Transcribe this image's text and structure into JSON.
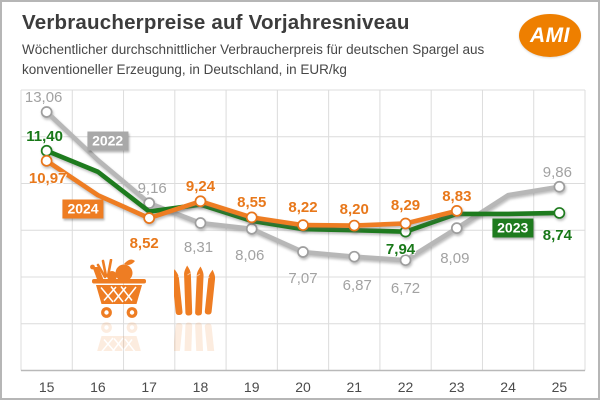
{
  "header": {
    "title": "Verbraucherpreise auf Vorjahresniveau",
    "subtitle": "Wöchentlicher durchschnittlicher Verbraucherpreis für deutschen Spargel aus konventioneller Erzeugung, in Deutschland, in EUR/kg",
    "logo_text": "AMI"
  },
  "colors": {
    "orange": "#ee7d23",
    "green": "#1e7b1e",
    "gray_line": "#b7b7b7",
    "gray_label": "#a2a2a2",
    "grid": "#dcdcdc",
    "axis": "#b9b9b9",
    "tick_text": "#4b4b4b",
    "logo_orange": "#ee7f00"
  },
  "icons": [
    {
      "name": "shopping-cart-icon"
    },
    {
      "name": "asparagus-icon"
    }
  ],
  "chart_data": {
    "type": "line",
    "title": "Verbraucherpreise auf Vorjahresniveau",
    "unit": "EUR/kg",
    "categories": [
      15,
      16,
      17,
      18,
      19,
      20,
      21,
      22,
      23,
      24,
      25
    ],
    "ylim": [
      2,
      14
    ],
    "grid_step": 2,
    "grid": true,
    "y_axis_labels_visible": false,
    "series": [
      {
        "name": "2022",
        "color": "#b7b7b7",
        "marker_stroke": "#9e9e9e",
        "label_color": "#a2a2a2",
        "label_bold": false,
        "values": [
          13.06,
          11.0,
          9.16,
          8.31,
          8.06,
          7.07,
          6.87,
          6.72,
          8.09,
          9.5,
          9.86
        ],
        "estimated_weeks": [
          16,
          24
        ],
        "marker_weeks": [
          15,
          17,
          18,
          19,
          20,
          21,
          22,
          23,
          25
        ],
        "point_labels": [
          {
            "week": 15,
            "text": "13,06",
            "pos": "above",
            "dx": -3
          },
          {
            "week": 17,
            "text": "9,16",
            "pos": "above",
            "dx": 3
          },
          {
            "week": 18,
            "text": "8,31",
            "pos": "below",
            "dy": 4,
            "dx": -2
          },
          {
            "week": 19,
            "text": "8,06",
            "pos": "below",
            "dy": 6,
            "dx": -2
          },
          {
            "week": 20,
            "text": "7,07",
            "pos": "below",
            "dy": 6
          },
          {
            "week": 21,
            "text": "6,87",
            "pos": "below",
            "dy": 8,
            "dx": 3
          },
          {
            "week": 22,
            "text": "6,72",
            "pos": "below",
            "dy": 8
          },
          {
            "week": 23,
            "text": "8,09",
            "pos": "below",
            "dy": 10,
            "dx": -2
          },
          {
            "week": 25,
            "text": "9,86",
            "pos": "above",
            "dx": -2
          }
        ],
        "year_label": {
          "text": "2022",
          "week": 16.19,
          "value": 11.82,
          "bg": "#a9a9a9"
        }
      },
      {
        "name": "2023",
        "color": "#1e7b1e",
        "marker_stroke": "#1e7b1e",
        "label_color": "#187818",
        "label_bold": true,
        "values": [
          11.4,
          10.5,
          8.8,
          9.1,
          8.4,
          8.05,
          8.0,
          7.94,
          8.7,
          8.7,
          8.74
        ],
        "estimated_weeks": [
          16,
          17,
          18,
          19,
          20,
          21,
          23,
          24
        ],
        "marker_weeks": [
          15,
          22,
          25
        ],
        "point_labels": [
          {
            "week": 15,
            "text": "11,40",
            "pos": "above",
            "dx": -2
          },
          {
            "week": 22,
            "text": "7,94",
            "pos": "below",
            "dy": -3,
            "dx": -5
          },
          {
            "week": 25,
            "text": "8,74",
            "pos": "below",
            "dy": 2,
            "dx": -2
          }
        ],
        "year_label": {
          "text": "2023",
          "week": 24.09,
          "value": 8.09,
          "bg": "#1e7b1e"
        }
      },
      {
        "name": "2024",
        "color": "#ee7d23",
        "marker_stroke": "#e8751a",
        "label_color": "#e8781b",
        "label_bold": true,
        "values": [
          10.97,
          9.5,
          8.52,
          9.24,
          8.55,
          8.22,
          8.2,
          8.29,
          8.83,
          null,
          null
        ],
        "estimated_weeks": [
          16
        ],
        "marker_weeks": [
          15,
          17,
          18,
          19,
          20,
          21,
          22,
          23
        ],
        "point_labels": [
          {
            "week": 15,
            "text": "10,97",
            "pos": "below",
            "dy": -3,
            "dx": 1
          },
          {
            "week": 17,
            "text": "8,52",
            "pos": "below",
            "dy": 5,
            "dx": -5
          },
          {
            "week": 18,
            "text": "9,24",
            "pos": "above"
          },
          {
            "week": 19,
            "text": "8,55",
            "pos": "above"
          },
          {
            "week": 20,
            "text": "8,22",
            "pos": "above",
            "dy": -3
          },
          {
            "week": 21,
            "text": "8,20",
            "pos": "above",
            "dy": -2
          },
          {
            "week": 22,
            "text": "8,29",
            "pos": "above",
            "dy": -3
          },
          {
            "week": 23,
            "text": "8,83",
            "pos": "above"
          }
        ],
        "year_label": {
          "text": "2024",
          "week": 15.71,
          "value": 8.9,
          "bg": "#ee7d23"
        }
      }
    ]
  }
}
